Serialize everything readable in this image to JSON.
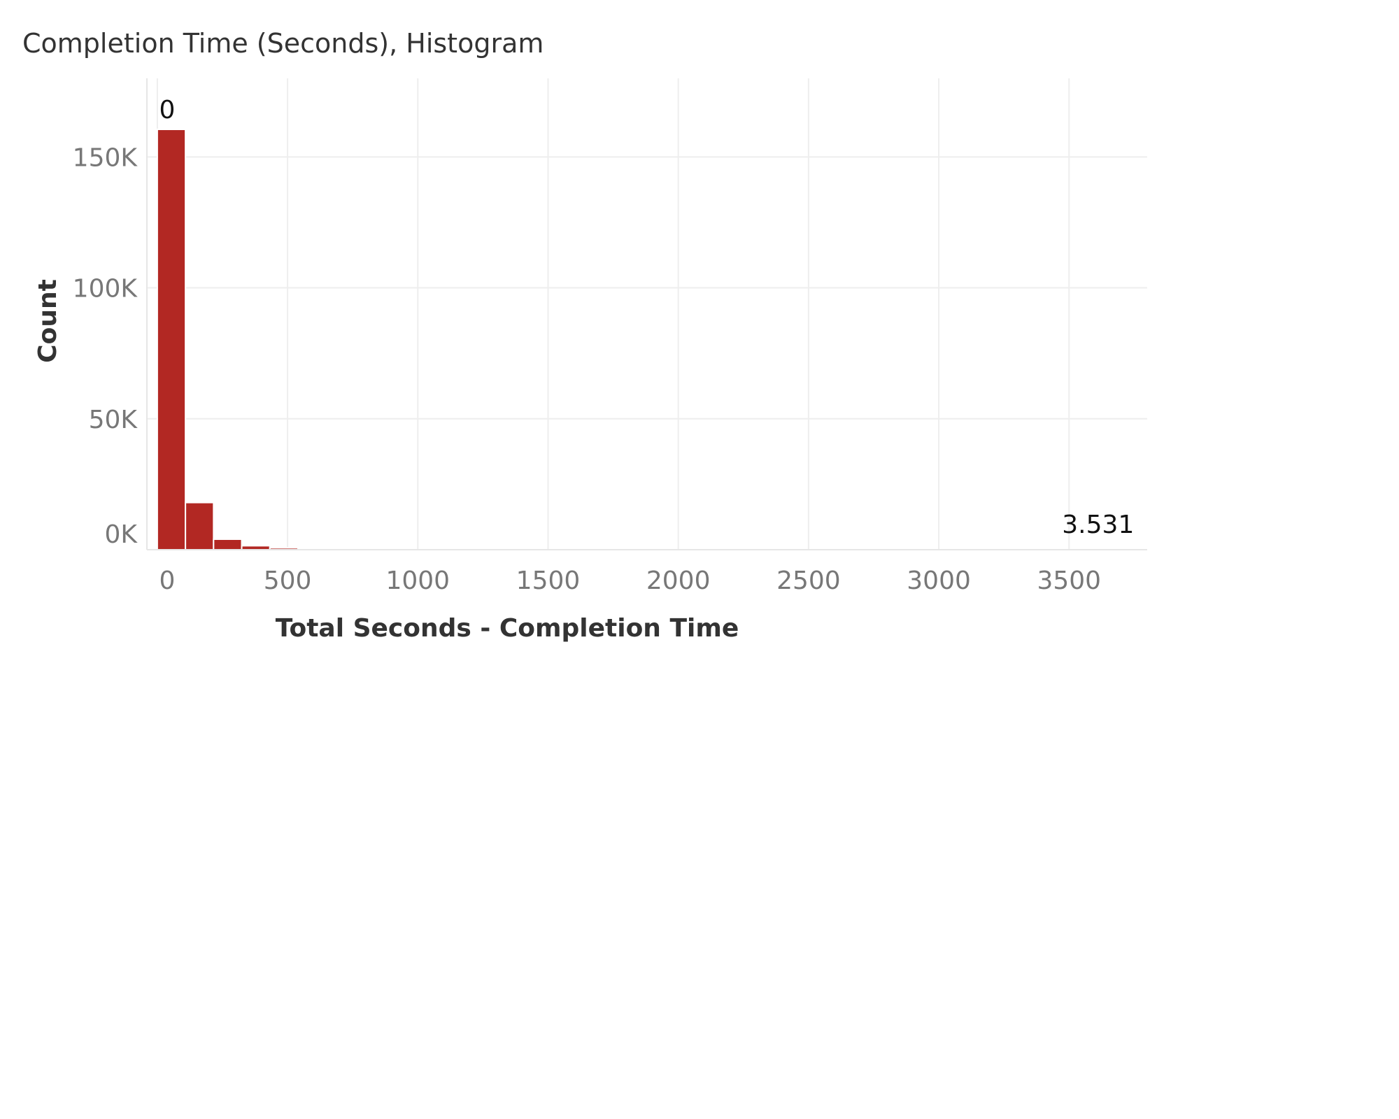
{
  "title": "Completion Time (Seconds), Histogram",
  "colors": {
    "bar": "#b22823",
    "grid": "#eeeeee",
    "tick": "#777777",
    "title": "#333333"
  },
  "chart_data": {
    "type": "bar",
    "title": "Completion Time (Seconds), Histogram",
    "xlabel": "Total Seconds - Completion Time",
    "ylabel": "Count",
    "bin_width": 108,
    "x": [
      0,
      108,
      216,
      324,
      432,
      540,
      648
    ],
    "values": [
      160500,
      18000,
      4000,
      1500,
      700,
      250,
      120
    ],
    "xlim": [
      -40,
      3800
    ],
    "ylim": [
      0,
      180000
    ],
    "x_ticks": [
      0,
      500,
      1000,
      1500,
      2000,
      2500,
      3000,
      3500
    ],
    "x_tick_labels": [
      "0",
      "500",
      "1000",
      "1500",
      "2000",
      "2500",
      "3000",
      "3500"
    ],
    "y_ticks": [
      0,
      50000,
      100000,
      150000
    ],
    "y_tick_labels": [
      "0K",
      "50K",
      "100K",
      "150K"
    ],
    "grid": true,
    "annotations": {
      "min_label": "0",
      "max_label": "3.531"
    }
  }
}
